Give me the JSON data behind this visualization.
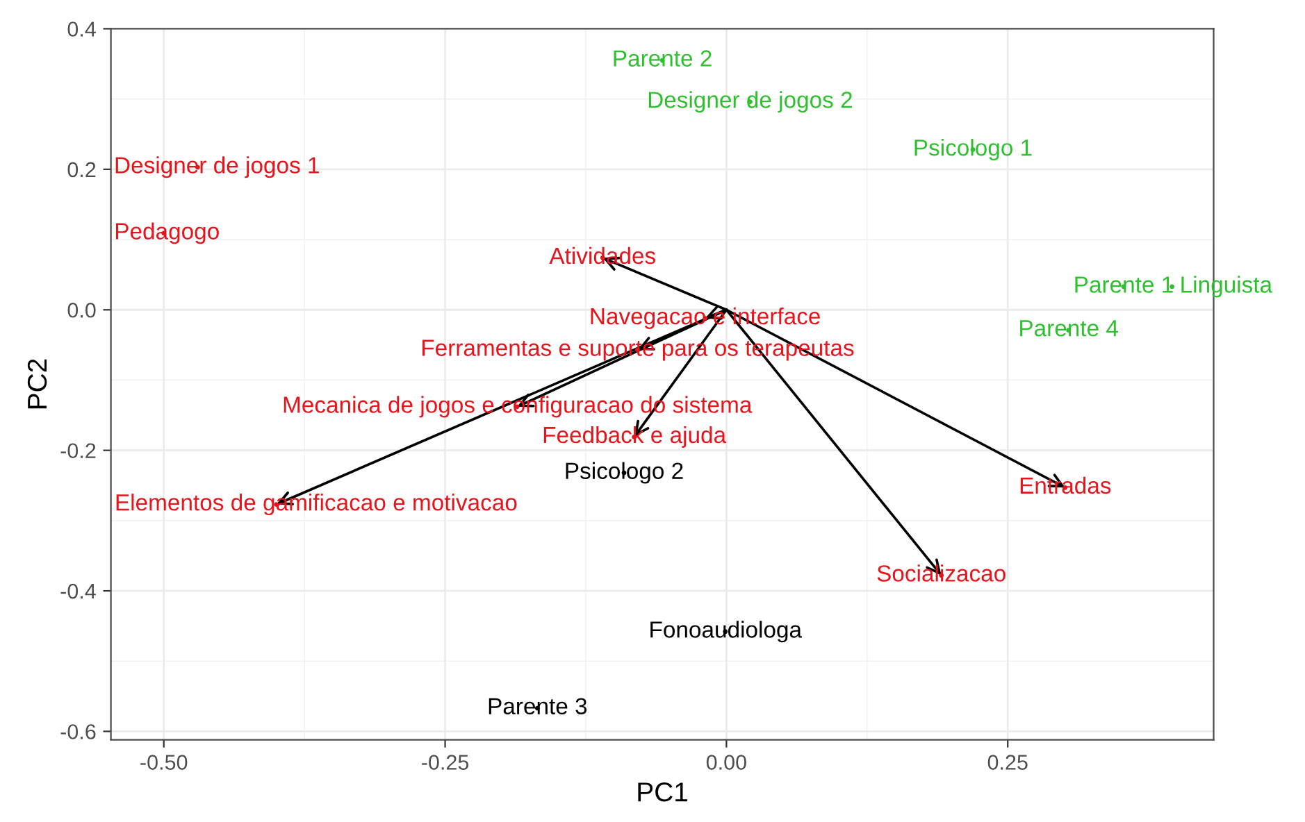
{
  "chart_data": {
    "type": "scatter",
    "xlabel": "PC1",
    "ylabel": "PC2",
    "marker": "circle",
    "grid": true,
    "legend": false,
    "xlim": [
      -0.547,
      0.433
    ],
    "ylim": [
      -0.612,
      0.4
    ],
    "xticks": [
      {
        "value": -0.5,
        "label": "-0.50"
      },
      {
        "value": -0.25,
        "label": "-0.25"
      },
      {
        "value": 0,
        "label": "0.00"
      },
      {
        "value": 0.25,
        "label": "0.25"
      }
    ],
    "yticks": [
      {
        "value": -0.6,
        "label": "-0.6"
      },
      {
        "value": -0.4,
        "label": "-0.4"
      },
      {
        "value": -0.2,
        "label": "-0.2"
      },
      {
        "value": 0,
        "label": "0.0"
      },
      {
        "value": 0.2,
        "label": "0.2"
      },
      {
        "value": 0.4,
        "label": "0.4"
      }
    ],
    "series": [
      {
        "type": "lollipop",
        "color": "#e8141c",
        "x": [
          -0.11,
          -0.019,
          -0.079,
          -0.186,
          -0.082,
          -0.4,
          0.301,
          0.191
        ],
        "values": [
          0.074,
          -0.012,
          -0.057,
          -0.138,
          -0.181,
          -0.277,
          -0.253,
          -0.378
        ],
        "value_labels": [
          "Atividades",
          "Navegacao e interface",
          "Ferramentas e suporte para os terapeutas",
          "Mecanica de jogos e configuracao do sistema",
          "Feedback e ajuda",
          "Elementos de gamificacao e motivacao",
          "Entradas",
          "Socializacao"
        ]
      },
      {
        "color": "#e8141c",
        "x": [
          -0.47,
          -0.5
        ],
        "values": [
          0.203,
          0.109
        ],
        "value_labels": [
          "Designer de jogos 1",
          "Pedagogo"
        ]
      },
      {
        "color": "#2ec02e",
        "x": [
          -0.057,
          0.021,
          0.219,
          0.353,
          0.396,
          0.304
        ],
        "values": [
          0.355,
          0.296,
          0.228,
          0.033,
          0.033,
          -0.029
        ],
        "value_labels": [
          "Parente 2",
          "Designer de jogos 2",
          "Psicologo 1",
          "Parente 1",
          "Linguista",
          "Parente 4"
        ]
      },
      {
        "color": "#000000",
        "x": [
          -0.091,
          -0.001,
          -0.168
        ],
        "values": [
          -0.232,
          -0.458,
          -0.567
        ],
        "value_labels": [
          "Psicologo 2",
          "Fonoaudiologa",
          "Parente 3"
        ]
      }
    ]
  }
}
